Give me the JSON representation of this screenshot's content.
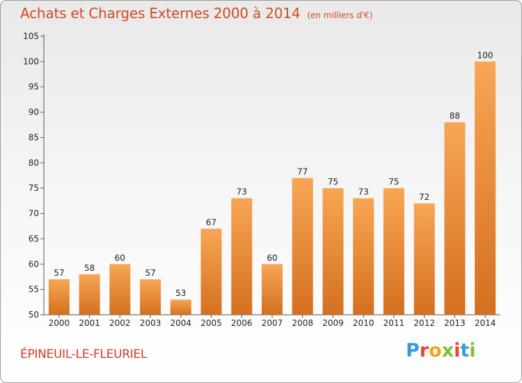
{
  "header": {
    "title": "Achats et Charges Externes 2000 à 2014",
    "subtitle": "(en milliers d'€)"
  },
  "footer": {
    "commune": "ÉPINEUIL-LE-FLEURIEL",
    "logo_text": "Proxiti"
  },
  "colors": {
    "bar_light": "#f7a655",
    "bar_dark": "#d4701f",
    "title": "#d24a1f",
    "commune": "#d03a2c",
    "axis": "#555555",
    "logo_letters": [
      "#3a9bd5",
      "#e8452c",
      "#f3a21a",
      "#7cbf3b",
      "#e8452c",
      "#3a9bd5",
      "#7cbf3b"
    ]
  },
  "chart_data": {
    "type": "bar",
    "title": "Achats et Charges Externes 2000 à 2014",
    "subtitle": "(en milliers d'€)",
    "categories": [
      "2000",
      "2001",
      "2002",
      "2003",
      "2004",
      "2005",
      "2006",
      "2007",
      "2008",
      "2009",
      "2010",
      "2011",
      "2012",
      "2013",
      "2014"
    ],
    "values": [
      57,
      58,
      60,
      57,
      53,
      67,
      73,
      60,
      77,
      75,
      73,
      75,
      72,
      88,
      100
    ],
    "ylim": [
      50,
      105
    ],
    "yticks": [
      50,
      55,
      60,
      65,
      70,
      75,
      80,
      85,
      90,
      95,
      100,
      105
    ],
    "grid": false,
    "legend": "none"
  }
}
